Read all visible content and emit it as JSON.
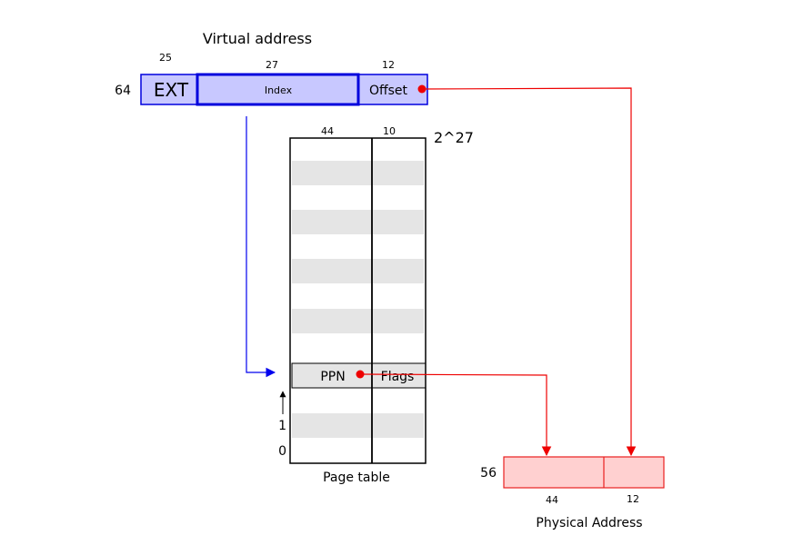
{
  "virtual_address": {
    "title": "Virtual address",
    "total_bits": "64",
    "fields": {
      "ext": {
        "label": "EXT",
        "bits": "25"
      },
      "index": {
        "label": "Index",
        "bits": "27"
      },
      "offset": {
        "label": "Offset",
        "bits": "12"
      }
    }
  },
  "page_table": {
    "title": "Page table",
    "size_label": "2^27",
    "columns": {
      "ppn_bits": "44",
      "flags_bits": "10"
    },
    "entry": {
      "ppn_label": "PPN",
      "flags_label": "Flags"
    },
    "row_labels": {
      "row_0": "0",
      "row_1": "1"
    }
  },
  "physical_address": {
    "title": "Physical Address",
    "total_bits": "56",
    "fields": {
      "ppn_bits": "44",
      "offset_bits": "12"
    }
  },
  "colors": {
    "virtual_fill": "#c8c8ff",
    "virtual_stroke": "#0000dd",
    "physical_fill": "#ffd0d0",
    "physical_stroke": "#e82020",
    "row_shade": "#e5e5e5",
    "arrow_blue": "#0000ee",
    "arrow_red": "#ee0000"
  }
}
